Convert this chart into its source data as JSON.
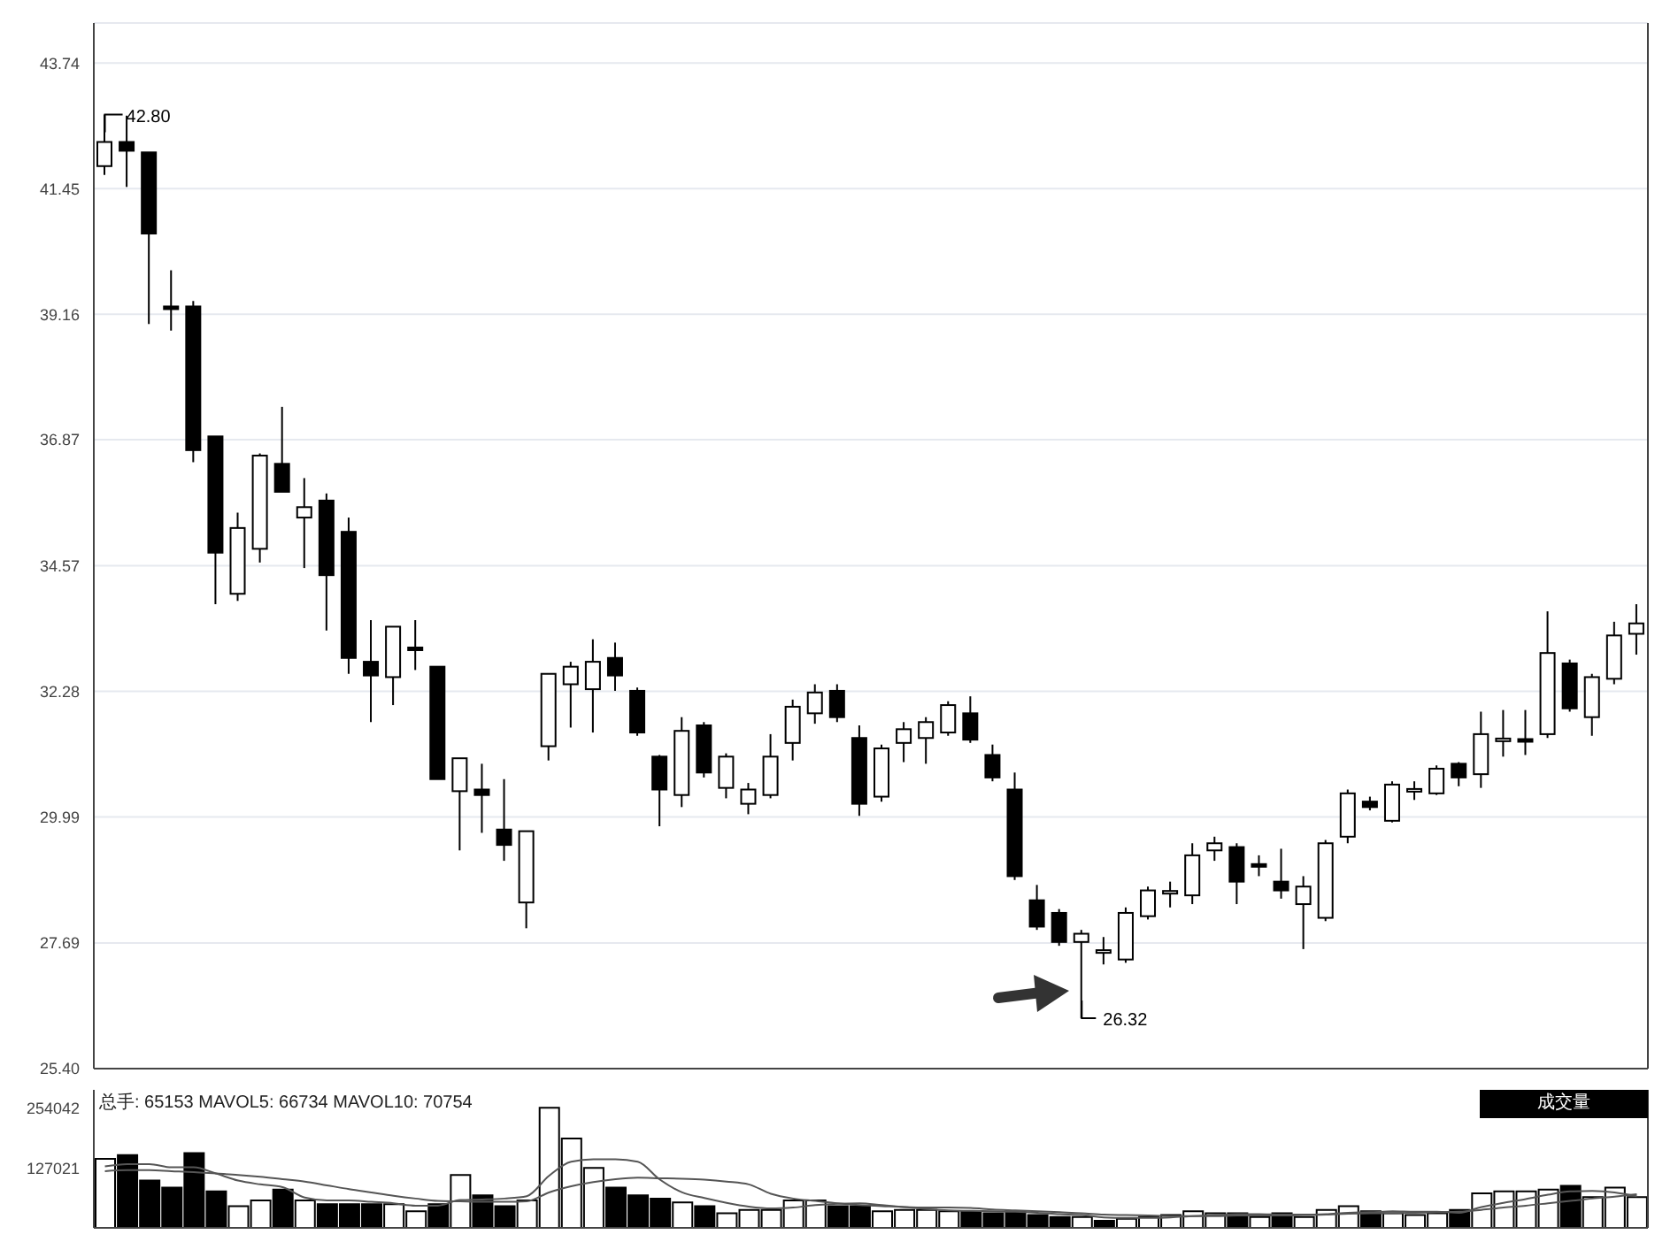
{
  "chart_data": [
    {
      "type": "candlestick",
      "tick_labels": "y",
      "grid": "y",
      "categories": [
        null,
        null,
        null,
        null,
        null,
        null,
        null,
        null,
        null,
        null,
        null,
        null,
        null,
        null,
        null,
        null,
        null,
        null,
        null,
        null,
        null,
        null,
        null,
        null,
        null,
        null,
        null,
        null,
        null,
        null,
        null,
        null,
        null,
        null,
        null,
        null,
        null,
        null,
        null,
        null,
        null,
        null,
        null,
        null,
        null,
        null,
        null,
        null,
        null,
        null,
        null,
        null,
        null,
        null,
        null,
        null,
        null,
        null,
        null,
        null,
        null,
        null,
        null,
        null,
        null,
        null,
        null,
        null,
        null,
        null
      ],
      "ohlc": [
        [
          41.86,
          42.8,
          41.7,
          42.3
        ],
        [
          42.3,
          42.78,
          41.48,
          42.14
        ],
        [
          42.11,
          42.11,
          38.98,
          40.63
        ],
        [
          39.3,
          39.96,
          38.86,
          39.29
        ],
        [
          39.3,
          39.4,
          36.46,
          36.68
        ],
        [
          36.93,
          36.93,
          33.87,
          34.81
        ],
        [
          34.06,
          35.54,
          33.93,
          35.26
        ],
        [
          34.88,
          36.62,
          34.63,
          36.58
        ],
        [
          36.43,
          37.47,
          35.92,
          35.92
        ],
        [
          35.45,
          36.17,
          34.53,
          35.64
        ],
        [
          35.76,
          35.89,
          33.39,
          34.4
        ],
        [
          35.19,
          35.45,
          32.6,
          32.89
        ],
        [
          32.82,
          33.58,
          31.72,
          32.57
        ],
        [
          32.54,
          33.46,
          32.03,
          33.46
        ],
        [
          33.08,
          33.58,
          32.67,
          33.06
        ],
        [
          32.73,
          32.73,
          30.68,
          30.68
        ],
        [
          30.46,
          31.06,
          29.38,
          31.06
        ],
        [
          30.49,
          30.96,
          29.7,
          30.39
        ],
        [
          29.76,
          30.68,
          29.19,
          29.48
        ],
        [
          28.43,
          29.73,
          27.96,
          29.73
        ],
        [
          31.28,
          32.6,
          31.02,
          32.6
        ],
        [
          32.41,
          32.82,
          31.62,
          32.73
        ],
        [
          32.32,
          33.23,
          31.53,
          32.82
        ],
        [
          32.89,
          33.17,
          32.29,
          32.57
        ],
        [
          32.29,
          32.35,
          31.47,
          31.53
        ],
        [
          31.09,
          31.12,
          29.82,
          30.49
        ],
        [
          30.39,
          31.81,
          30.17,
          31.56
        ],
        [
          31.66,
          31.72,
          30.71,
          30.8
        ],
        [
          30.52,
          31.15,
          30.33,
          31.09
        ],
        [
          30.23,
          30.61,
          30.04,
          30.49
        ],
        [
          30.39,
          31.5,
          30.33,
          31.09
        ],
        [
          31.34,
          32.13,
          31.02,
          32.0
        ],
        [
          31.88,
          32.41,
          31.69,
          32.26
        ],
        [
          32.29,
          32.41,
          31.72,
          31.81
        ],
        [
          31.43,
          31.66,
          30.01,
          30.23
        ],
        [
          30.36,
          31.31,
          30.27,
          31.24
        ],
        [
          31.34,
          31.72,
          30.99,
          31.59
        ],
        [
          31.43,
          31.81,
          30.96,
          31.72
        ],
        [
          31.53,
          32.1,
          31.47,
          32.03
        ],
        [
          31.88,
          32.19,
          31.34,
          31.4
        ],
        [
          31.12,
          31.31,
          30.64,
          30.71
        ],
        [
          30.49,
          30.8,
          28.84,
          28.91
        ],
        [
          28.47,
          28.75,
          27.93,
          27.99
        ],
        [
          28.24,
          28.31,
          27.64,
          27.71
        ],
        [
          27.71,
          27.93,
          26.32,
          27.86
        ],
        [
          27.55,
          27.8,
          27.3,
          27.56
        ],
        [
          27.39,
          28.34,
          27.33,
          28.24
        ],
        [
          28.18,
          28.72,
          28.12,
          28.65
        ],
        [
          28.62,
          28.81,
          28.34,
          28.64
        ],
        [
          28.56,
          29.51,
          28.4,
          29.29
        ],
        [
          29.38,
          29.63,
          29.19,
          29.51
        ],
        [
          29.44,
          29.51,
          28.4,
          28.81
        ],
        [
          29.13,
          29.29,
          28.91,
          29.12
        ],
        [
          28.81,
          29.41,
          28.5,
          28.65
        ],
        [
          28.4,
          28.91,
          27.58,
          28.72
        ],
        [
          28.15,
          29.57,
          28.09,
          29.51
        ],
        [
          29.63,
          30.49,
          29.51,
          30.42
        ],
        [
          30.27,
          30.36,
          30.11,
          30.17
        ],
        [
          29.92,
          30.64,
          29.89,
          30.58
        ],
        [
          30.49,
          30.64,
          30.3,
          30.5
        ],
        [
          30.42,
          30.93,
          30.39,
          30.87
        ],
        [
          30.96,
          30.99,
          30.55,
          30.71
        ],
        [
          30.77,
          31.91,
          30.52,
          31.5
        ],
        [
          31.4,
          31.94,
          31.09,
          31.42
        ],
        [
          31.41,
          31.94,
          31.12,
          31.4
        ],
        [
          31.5,
          33.74,
          31.43,
          32.98
        ],
        [
          32.79,
          32.86,
          31.91,
          31.97
        ],
        [
          31.81,
          32.6,
          31.47,
          32.54
        ],
        [
          32.51,
          33.55,
          32.41,
          33.3
        ],
        [
          33.33,
          33.87,
          32.95,
          33.52
        ]
      ],
      "ylim": [
        25.4,
        44.47
      ],
      "yticks": [
        {
          "value": 25.4,
          "label": "25.40"
        },
        {
          "value": 27.69,
          "label": "27.69"
        },
        {
          "value": 29.99,
          "label": "29.99"
        },
        {
          "value": 32.28,
          "label": "32.28"
        },
        {
          "value": 34.57,
          "label": "34.57"
        },
        {
          "value": 36.87,
          "label": "36.87"
        },
        {
          "value": 39.16,
          "label": "39.16"
        },
        {
          "value": 41.45,
          "label": "41.45"
        },
        {
          "value": 43.74,
          "label": "43.74"
        }
      ],
      "annotations": [
        "42.80",
        "26.32"
      ]
    },
    {
      "type": "bar",
      "tick_labels": "y",
      "subtitle": "总手: 65153 MAVOL5: 66734 MAVOL10: 70754",
      "categories": [
        null,
        null,
        null,
        null,
        null,
        null,
        null,
        null,
        null,
        null,
        null,
        null,
        null,
        null,
        null,
        null,
        null,
        null,
        null,
        null,
        null,
        null,
        null,
        null,
        null,
        null,
        null,
        null,
        null,
        null,
        null,
        null,
        null,
        null,
        null,
        null,
        null,
        null,
        null,
        null,
        null,
        null,
        null,
        null,
        null,
        null,
        null,
        null,
        null,
        null,
        null,
        null,
        null,
        null,
        null,
        null,
        null,
        null,
        null,
        null,
        null,
        null,
        null,
        null,
        null,
        null,
        null,
        null,
        null,
        null
      ],
      "series": [
        {
          "type": "bar",
          "values": [
            146000,
            154000,
            100000,
            85000,
            158000,
            77000,
            46000,
            58000,
            81000,
            58000,
            50000,
            50000,
            50000,
            50000,
            35000,
            50000,
            112000,
            69000,
            46000,
            58000,
            254000,
            189000,
            127000,
            85000,
            69000,
            62000,
            54000,
            46000,
            31000,
            38000,
            38000,
            58000,
            58000,
            46000,
            46000,
            35000,
            38000,
            38000,
            35000,
            35000,
            31000,
            35000,
            27000,
            23000,
            23000,
            15000,
            19000,
            23000,
            27000,
            35000,
            31000,
            31000,
            23000,
            31000,
            23000,
            38000,
            46000,
            35000,
            31000,
            27000,
            31000,
            38000,
            73000,
            77000,
            77000,
            81000,
            89000,
            65000,
            85000,
            65000
          ],
          "colors": [
            "#ffffff",
            "#000000",
            "#000000",
            "#000000",
            "#000000",
            "#000000",
            "#ffffff",
            "#ffffff",
            "#000000",
            "#ffffff",
            "#000000",
            "#000000",
            "#000000",
            "#ffffff",
            "#ffffff",
            "#000000",
            "#ffffff",
            "#000000",
            "#000000",
            "#ffffff",
            "#ffffff",
            "#ffffff",
            "#ffffff",
            "#000000",
            "#000000",
            "#000000",
            "#ffffff",
            "#000000",
            "#ffffff",
            "#ffffff",
            "#ffffff",
            "#ffffff",
            "#ffffff",
            "#000000",
            "#000000",
            "#ffffff",
            "#ffffff",
            "#ffffff",
            "#ffffff",
            "#000000",
            "#000000",
            "#000000",
            "#000000",
            "#000000",
            "#ffffff",
            "#000000",
            "#ffffff",
            "#ffffff",
            "#ffffff",
            "#ffffff",
            "#ffffff",
            "#000000",
            "#ffffff",
            "#000000",
            "#ffffff",
            "#ffffff",
            "#ffffff",
            "#000000",
            "#ffffff",
            "#ffffff",
            "#ffffff",
            "#000000",
            "#ffffff",
            "#ffffff",
            "#ffffff",
            "#ffffff",
            "#000000",
            "#ffffff",
            "#ffffff",
            "#ffffff"
          ]
        },
        {
          "type": "line",
          "color": "#555555",
          "values": [
            130000,
            135000,
            135000,
            128000,
            128000,
            115000,
            100000,
            92000,
            86000,
            64000,
            58000,
            58000,
            55000,
            52000,
            47000,
            47000,
            59000,
            60000,
            62000,
            67000,
            110000,
            140000,
            145000,
            145000,
            140000,
            102000,
            75000,
            63000,
            53000,
            45000,
            41000,
            43000,
            48000,
            51000,
            52000,
            48000,
            44000,
            40000,
            37000,
            36000,
            35000,
            34000,
            32000,
            29000,
            27000,
            22000,
            21000,
            21000,
            22000,
            25000,
            27000,
            29000,
            29000,
            28000,
            28000,
            29000,
            32000,
            33000,
            35000,
            34000,
            34000,
            32000,
            44000,
            53000,
            61000,
            70000,
            77000,
            78000,
            75000,
            67000
          ]
        },
        {
          "type": "line",
          "color": "#555555",
          "values": [
            120000,
            122000,
            122000,
            120000,
            118000,
            115000,
            112000,
            108000,
            103000,
            98000,
            90000,
            82000,
            75000,
            68000,
            62000,
            57000,
            56000,
            55000,
            55000,
            56000,
            75000,
            88000,
            97000,
            103000,
            106000,
            105000,
            104000,
            102000,
            98000,
            92000,
            72000,
            62000,
            57000,
            52000,
            48000,
            46000,
            44000,
            43000,
            43000,
            42000,
            39000,
            37000,
            35000,
            33000,
            31000,
            28000,
            27000,
            26000,
            25000,
            25000,
            25000,
            26000,
            26000,
            26000,
            27000,
            28000,
            30000,
            31000,
            31000,
            32000,
            33000,
            34000,
            38000,
            43000,
            47000,
            52000,
            57000,
            62000,
            66000,
            71000
          ]
        }
      ],
      "ylim": [
        0,
        292000
      ],
      "yticks": [
        127021,
        254042
      ],
      "annotations": [
        "成交量"
      ]
    }
  ]
}
